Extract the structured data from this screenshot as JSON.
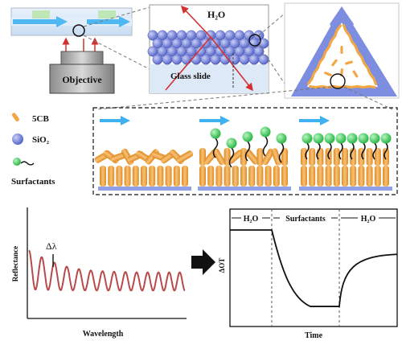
{
  "labels": {
    "objective": "Objective",
    "water_top": "H₂O",
    "glass_slide": "Glass slide",
    "legend_5cb": "5CB",
    "legend_sio2": "SiO₂",
    "legend_surfactants": "Surfactants",
    "left_ylabel": "Reflectance",
    "left_xlabel": "Wavelength",
    "delta_lambda": "Δλ",
    "right_ylabel": "ΔOT",
    "right_xlabel": "Time",
    "seg_h2o_1": "H₂O",
    "seg_surfactants": "Surfactants",
    "seg_h2o_2": "H₂O"
  },
  "colors": {
    "lc_orange": "#f2a644",
    "sio2_blue": "#6f7fd8",
    "surfactant_green": "#3ecf5a",
    "flow_arrow": "#3fb0f0",
    "spectrum_line": "#b84a4a",
    "light_red": "#d43030"
  },
  "chart_data": [
    {
      "type": "line",
      "title": "",
      "xlabel": "Wavelength",
      "ylabel": "Reflectance",
      "annotation": "Δλ",
      "series": [
        {
          "values": [
            0.9,
            0.72,
            0.58,
            0.5,
            0.46,
            0.44,
            0.43,
            0.42,
            0.42,
            0.42,
            0.42
          ]
        }
      ]
    },
    {
      "type": "line",
      "title": "",
      "xlabel": "Time",
      "ylabel": "ΔOT",
      "segments": [
        "H₂O",
        "Surfactants",
        "H₂O"
      ],
      "series": [
        {
          "values": [
            1.0,
            1.0,
            0.55,
            0.22,
            0.12,
            0.12,
            0.55,
            0.7,
            0.72
          ]
        }
      ]
    }
  ]
}
